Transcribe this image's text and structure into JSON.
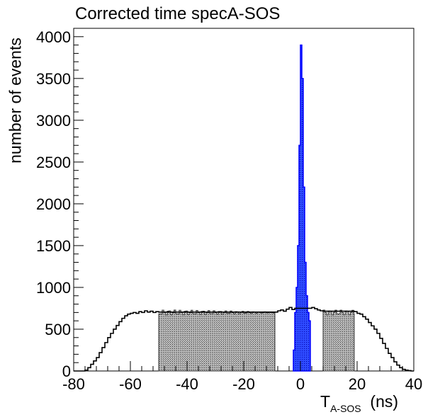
{
  "chart_data": {
    "type": "histogram",
    "title": "Corrected time specA-SOS",
    "xlabel_main": "T",
    "xlabel_sub": "A-SOS",
    "xlabel_unit": "(ns)",
    "ylabel": "number of events",
    "xlim": [
      -80,
      40
    ],
    "ylim": [
      0,
      4100
    ],
    "x_ticks": [
      -80,
      -60,
      -40,
      -20,
      0,
      20,
      40
    ],
    "y_ticks": [
      0,
      500,
      1000,
      1500,
      2000,
      2500,
      3000,
      3500,
      4000
    ],
    "series": [
      {
        "role": "total",
        "style": "step-outline",
        "color": "#000000",
        "points": [
          [
            -80,
            0
          ],
          [
            -77,
            0
          ],
          [
            -76,
            10
          ],
          [
            -75,
            40
          ],
          [
            -74,
            80
          ],
          [
            -73,
            120
          ],
          [
            -72,
            160
          ],
          [
            -71,
            220
          ],
          [
            -70,
            280
          ],
          [
            -69,
            340
          ],
          [
            -68,
            400
          ],
          [
            -67,
            450
          ],
          [
            -66,
            500
          ],
          [
            -65,
            545
          ],
          [
            -64,
            590
          ],
          [
            -63,
            630
          ],
          [
            -62,
            660
          ],
          [
            -61,
            680
          ],
          [
            -60,
            690
          ],
          [
            -59,
            700
          ],
          [
            -58,
            690
          ],
          [
            -57,
            710
          ],
          [
            -56,
            700
          ],
          [
            -55,
            720
          ],
          [
            -54,
            705
          ],
          [
            -53,
            715
          ],
          [
            -52,
            700
          ],
          [
            -51,
            710
          ],
          [
            -50,
            705
          ],
          [
            -8,
            720
          ],
          [
            -7,
            730
          ],
          [
            -6,
            715
          ],
          [
            -5,
            740
          ],
          [
            -4,
            760
          ],
          [
            -3,
            735
          ],
          [
            -2,
            750
          ],
          [
            4,
            760
          ],
          [
            5,
            745
          ],
          [
            6,
            730
          ],
          [
            7,
            720
          ],
          [
            8,
            715
          ],
          [
            19,
            710
          ],
          [
            20,
            690
          ],
          [
            21,
            680
          ],
          [
            22,
            650
          ],
          [
            23,
            620
          ],
          [
            24,
            580
          ],
          [
            25,
            540
          ],
          [
            26,
            500
          ],
          [
            27,
            450
          ],
          [
            28,
            390
          ],
          [
            29,
            330
          ],
          [
            30,
            270
          ],
          [
            31,
            210
          ],
          [
            32,
            160
          ],
          [
            33,
            110
          ],
          [
            34,
            70
          ],
          [
            35,
            40
          ],
          [
            36,
            20
          ],
          [
            37,
            10
          ],
          [
            38,
            5
          ],
          [
            39,
            0
          ],
          [
            40,
            0
          ]
        ]
      },
      {
        "role": "side-band-left",
        "style": "shaded",
        "color": "#808080",
        "x_range": [
          -50,
          -9
        ],
        "level": 700
      },
      {
        "role": "signal-peak",
        "style": "shaded",
        "color": "#0000ff",
        "x_range": [
          -2.5,
          3.5
        ],
        "bins": [
          [
            -2.5,
            250
          ],
          [
            -2.0,
            700
          ],
          [
            -1.5,
            1000
          ],
          [
            -1.0,
            1500
          ],
          [
            -0.5,
            2700
          ],
          [
            0.0,
            3900
          ],
          [
            0.5,
            3500
          ],
          [
            1.0,
            2200
          ],
          [
            1.5,
            1300
          ],
          [
            2.0,
            900
          ],
          [
            2.5,
            700
          ],
          [
            3.0,
            600
          ]
        ]
      },
      {
        "role": "side-band-right",
        "style": "shaded",
        "color": "#808080",
        "x_range": [
          8,
          19
        ],
        "level": 700
      }
    ]
  }
}
